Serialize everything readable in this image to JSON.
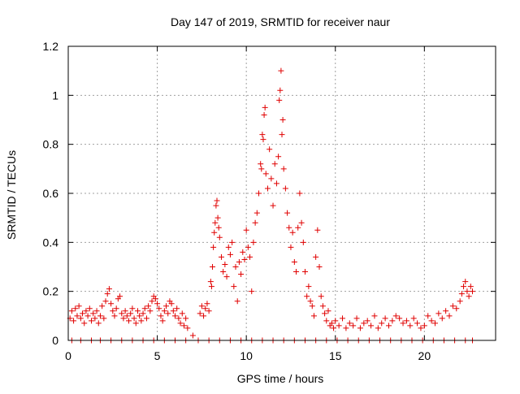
{
  "chart_data": {
    "type": "scatter",
    "title": "Day 147 of 2019, SRMTID for receiver naur",
    "xlabel": "GPS time / hours",
    "ylabel": "SRMTID / TECUs",
    "xlim": [
      0,
      24
    ],
    "ylim": [
      0,
      1.2
    ],
    "xticks": [
      0,
      5,
      10,
      15,
      20
    ],
    "yticks": [
      0,
      0.2,
      0.4,
      0.6,
      0.8,
      1,
      1.2
    ],
    "xtick_labels": [
      "0",
      "5",
      "10",
      "15",
      "20"
    ],
    "ytick_labels": [
      "0",
      "0.2",
      "0.4",
      "0.6",
      "0.8",
      "1",
      "1.2"
    ],
    "grid": true,
    "marker": "+",
    "color": "#e00000",
    "series": [
      {
        "name": "SRMTID",
        "points": [
          [
            0.1,
            0.09
          ],
          [
            0.2,
            0.12
          ],
          [
            0.3,
            0.08
          ],
          [
            0.4,
            0.13
          ],
          [
            0.5,
            0.1
          ],
          [
            0.6,
            0.14
          ],
          [
            0.7,
            0.09
          ],
          [
            0.8,
            0.11
          ],
          [
            0.9,
            0.07
          ],
          [
            1.0,
            0.12
          ],
          [
            1.1,
            0.1
          ],
          [
            1.2,
            0.13
          ],
          [
            1.3,
            0.08
          ],
          [
            1.4,
            0.11
          ],
          [
            1.5,
            0.09
          ],
          [
            1.6,
            0.12
          ],
          [
            1.7,
            0.07
          ],
          [
            1.8,
            0.1
          ],
          [
            1.9,
            0.14
          ],
          [
            2.0,
            0.09
          ],
          [
            2.1,
            0.16
          ],
          [
            2.2,
            0.19
          ],
          [
            2.3,
            0.21
          ],
          [
            2.4,
            0.15
          ],
          [
            2.5,
            0.12
          ],
          [
            2.6,
            0.1
          ],
          [
            2.7,
            0.13
          ],
          [
            2.8,
            0.17
          ],
          [
            2.9,
            0.18
          ],
          [
            3.0,
            0.11
          ],
          [
            3.1,
            0.09
          ],
          [
            3.2,
            0.12
          ],
          [
            3.3,
            0.1
          ],
          [
            3.4,
            0.08
          ],
          [
            3.5,
            0.11
          ],
          [
            3.6,
            0.13
          ],
          [
            3.7,
            0.09
          ],
          [
            3.8,
            0.07
          ],
          [
            3.9,
            0.12
          ],
          [
            4.0,
            0.1
          ],
          [
            4.1,
            0.08
          ],
          [
            4.2,
            0.11
          ],
          [
            4.3,
            0.13
          ],
          [
            4.4,
            0.09
          ],
          [
            4.5,
            0.14
          ],
          [
            4.6,
            0.12
          ],
          [
            4.7,
            0.16
          ],
          [
            4.8,
            0.18
          ],
          [
            4.9,
            0.17
          ],
          [
            5.0,
            0.15
          ],
          [
            5.1,
            0.13
          ],
          [
            5.2,
            0.1
          ],
          [
            5.3,
            0.08
          ],
          [
            5.4,
            0.12
          ],
          [
            5.5,
            0.14
          ],
          [
            5.6,
            0.11
          ],
          [
            5.7,
            0.16
          ],
          [
            5.8,
            0.15
          ],
          [
            5.9,
            0.12
          ],
          [
            6.0,
            0.1
          ],
          [
            6.1,
            0.13
          ],
          [
            6.2,
            0.09
          ],
          [
            6.3,
            0.07
          ],
          [
            6.4,
            0.11
          ],
          [
            6.5,
            0.06
          ],
          [
            6.6,
            0.09
          ],
          [
            6.7,
            0.05
          ],
          [
            7.0,
            0.02
          ],
          [
            7.4,
            0.11
          ],
          [
            7.5,
            0.14
          ],
          [
            7.6,
            0.1
          ],
          [
            7.7,
            0.13
          ],
          [
            7.8,
            0.15
          ],
          [
            7.9,
            0.12
          ],
          [
            8.0,
            0.24
          ],
          [
            8.05,
            0.22
          ],
          [
            8.1,
            0.3
          ],
          [
            8.15,
            0.38
          ],
          [
            8.2,
            0.44
          ],
          [
            8.25,
            0.48
          ],
          [
            8.3,
            0.55
          ],
          [
            8.35,
            0.57
          ],
          [
            8.4,
            0.5
          ],
          [
            8.45,
            0.46
          ],
          [
            8.5,
            0.42
          ],
          [
            8.6,
            0.34
          ],
          [
            8.7,
            0.28
          ],
          [
            8.8,
            0.31
          ],
          [
            8.9,
            0.26
          ],
          [
            9.0,
            0.38
          ],
          [
            9.1,
            0.35
          ],
          [
            9.2,
            0.4
          ],
          [
            9.3,
            0.22
          ],
          [
            9.4,
            0.3
          ],
          [
            9.5,
            0.16
          ],
          [
            9.6,
            0.32
          ],
          [
            9.7,
            0.27
          ],
          [
            9.8,
            0.36
          ],
          [
            9.9,
            0.33
          ],
          [
            10.0,
            0.45
          ],
          [
            10.1,
            0.38
          ],
          [
            10.2,
            0.34
          ],
          [
            10.3,
            0.2
          ],
          [
            10.4,
            0.4
          ],
          [
            10.5,
            0.48
          ],
          [
            10.6,
            0.52
          ],
          [
            10.7,
            0.6
          ],
          [
            10.8,
            0.72
          ],
          [
            10.85,
            0.7
          ],
          [
            10.9,
            0.84
          ],
          [
            10.95,
            0.82
          ],
          [
            11.0,
            0.92
          ],
          [
            11.05,
            0.95
          ],
          [
            11.1,
            0.68
          ],
          [
            11.2,
            0.62
          ],
          [
            11.3,
            0.78
          ],
          [
            11.4,
            0.66
          ],
          [
            11.5,
            0.55
          ],
          [
            11.6,
            0.72
          ],
          [
            11.7,
            0.64
          ],
          [
            11.8,
            0.75
          ],
          [
            11.85,
            0.98
          ],
          [
            11.9,
            1.02
          ],
          [
            11.95,
            1.1
          ],
          [
            12.0,
            0.84
          ],
          [
            12.05,
            0.9
          ],
          [
            12.1,
            0.7
          ],
          [
            12.2,
            0.62
          ],
          [
            12.3,
            0.52
          ],
          [
            12.4,
            0.46
          ],
          [
            12.5,
            0.38
          ],
          [
            12.6,
            0.44
          ],
          [
            12.7,
            0.32
          ],
          [
            12.8,
            0.28
          ],
          [
            12.9,
            0.46
          ],
          [
            13.0,
            0.6
          ],
          [
            13.1,
            0.48
          ],
          [
            13.2,
            0.4
          ],
          [
            13.3,
            0.28
          ],
          [
            13.4,
            0.18
          ],
          [
            13.5,
            0.22
          ],
          [
            13.6,
            0.16
          ],
          [
            13.7,
            0.14
          ],
          [
            13.8,
            0.1
          ],
          [
            13.9,
            0.34
          ],
          [
            14.0,
            0.45
          ],
          [
            14.1,
            0.3
          ],
          [
            14.2,
            0.18
          ],
          [
            14.3,
            0.14
          ],
          [
            14.4,
            0.11
          ],
          [
            14.5,
            0.08
          ],
          [
            14.6,
            0.12
          ],
          [
            14.7,
            0.06
          ],
          [
            14.8,
            0.07
          ],
          [
            14.9,
            0.05
          ],
          [
            15.0,
            0.08
          ],
          [
            15.2,
            0.06
          ],
          [
            15.4,
            0.09
          ],
          [
            15.6,
            0.05
          ],
          [
            15.8,
            0.07
          ],
          [
            16.0,
            0.06
          ],
          [
            16.2,
            0.09
          ],
          [
            16.4,
            0.05
          ],
          [
            16.6,
            0.07
          ],
          [
            16.8,
            0.08
          ],
          [
            17.0,
            0.06
          ],
          [
            17.2,
            0.1
          ],
          [
            17.4,
            0.05
          ],
          [
            17.6,
            0.07
          ],
          [
            17.8,
            0.09
          ],
          [
            18.0,
            0.06
          ],
          [
            18.2,
            0.08
          ],
          [
            18.4,
            0.1
          ],
          [
            18.6,
            0.09
          ],
          [
            18.8,
            0.07
          ],
          [
            19.0,
            0.08
          ],
          [
            19.2,
            0.06
          ],
          [
            19.4,
            0.09
          ],
          [
            19.6,
            0.07
          ],
          [
            19.8,
            0.05
          ],
          [
            20.0,
            0.06
          ],
          [
            20.2,
            0.1
          ],
          [
            20.4,
            0.08
          ],
          [
            20.6,
            0.07
          ],
          [
            20.8,
            0.11
          ],
          [
            21.0,
            0.09
          ],
          [
            21.2,
            0.12
          ],
          [
            21.4,
            0.1
          ],
          [
            21.6,
            0.14
          ],
          [
            21.8,
            0.13
          ],
          [
            22.0,
            0.16
          ],
          [
            22.1,
            0.19
          ],
          [
            22.2,
            0.22
          ],
          [
            22.3,
            0.24
          ],
          [
            22.4,
            0.2
          ],
          [
            22.5,
            0.18
          ],
          [
            22.6,
            0.22
          ],
          [
            22.7,
            0.2
          ],
          [
            0.2,
            0
          ],
          [
            0.7,
            0
          ],
          [
            1.3,
            0
          ],
          [
            1.8,
            0
          ],
          [
            2.4,
            0
          ],
          [
            3.0,
            0
          ],
          [
            3.6,
            0
          ],
          [
            4.2,
            0
          ],
          [
            4.8,
            0
          ],
          [
            5.4,
            0
          ],
          [
            6.0,
            0
          ],
          [
            6.6,
            0
          ],
          [
            7.3,
            0
          ],
          [
            7.9,
            0
          ],
          [
            8.5,
            0
          ],
          [
            9.1,
            0
          ],
          [
            9.7,
            0
          ],
          [
            10.3,
            0
          ],
          [
            10.9,
            0
          ],
          [
            11.5,
            0
          ],
          [
            12.1,
            0
          ],
          [
            12.7,
            0
          ],
          [
            13.3,
            0
          ],
          [
            13.9,
            0
          ],
          [
            14.5,
            0
          ],
          [
            15.1,
            0
          ],
          [
            15.7,
            0
          ],
          [
            16.3,
            0
          ],
          [
            16.9,
            0
          ],
          [
            17.5,
            0
          ],
          [
            18.1,
            0
          ],
          [
            18.7,
            0
          ],
          [
            19.3,
            0
          ],
          [
            19.9,
            0
          ],
          [
            20.5,
            0
          ],
          [
            21.1,
            0
          ],
          [
            21.7,
            0
          ],
          [
            22.3,
            0
          ],
          [
            22.7,
            0
          ]
        ]
      }
    ]
  }
}
